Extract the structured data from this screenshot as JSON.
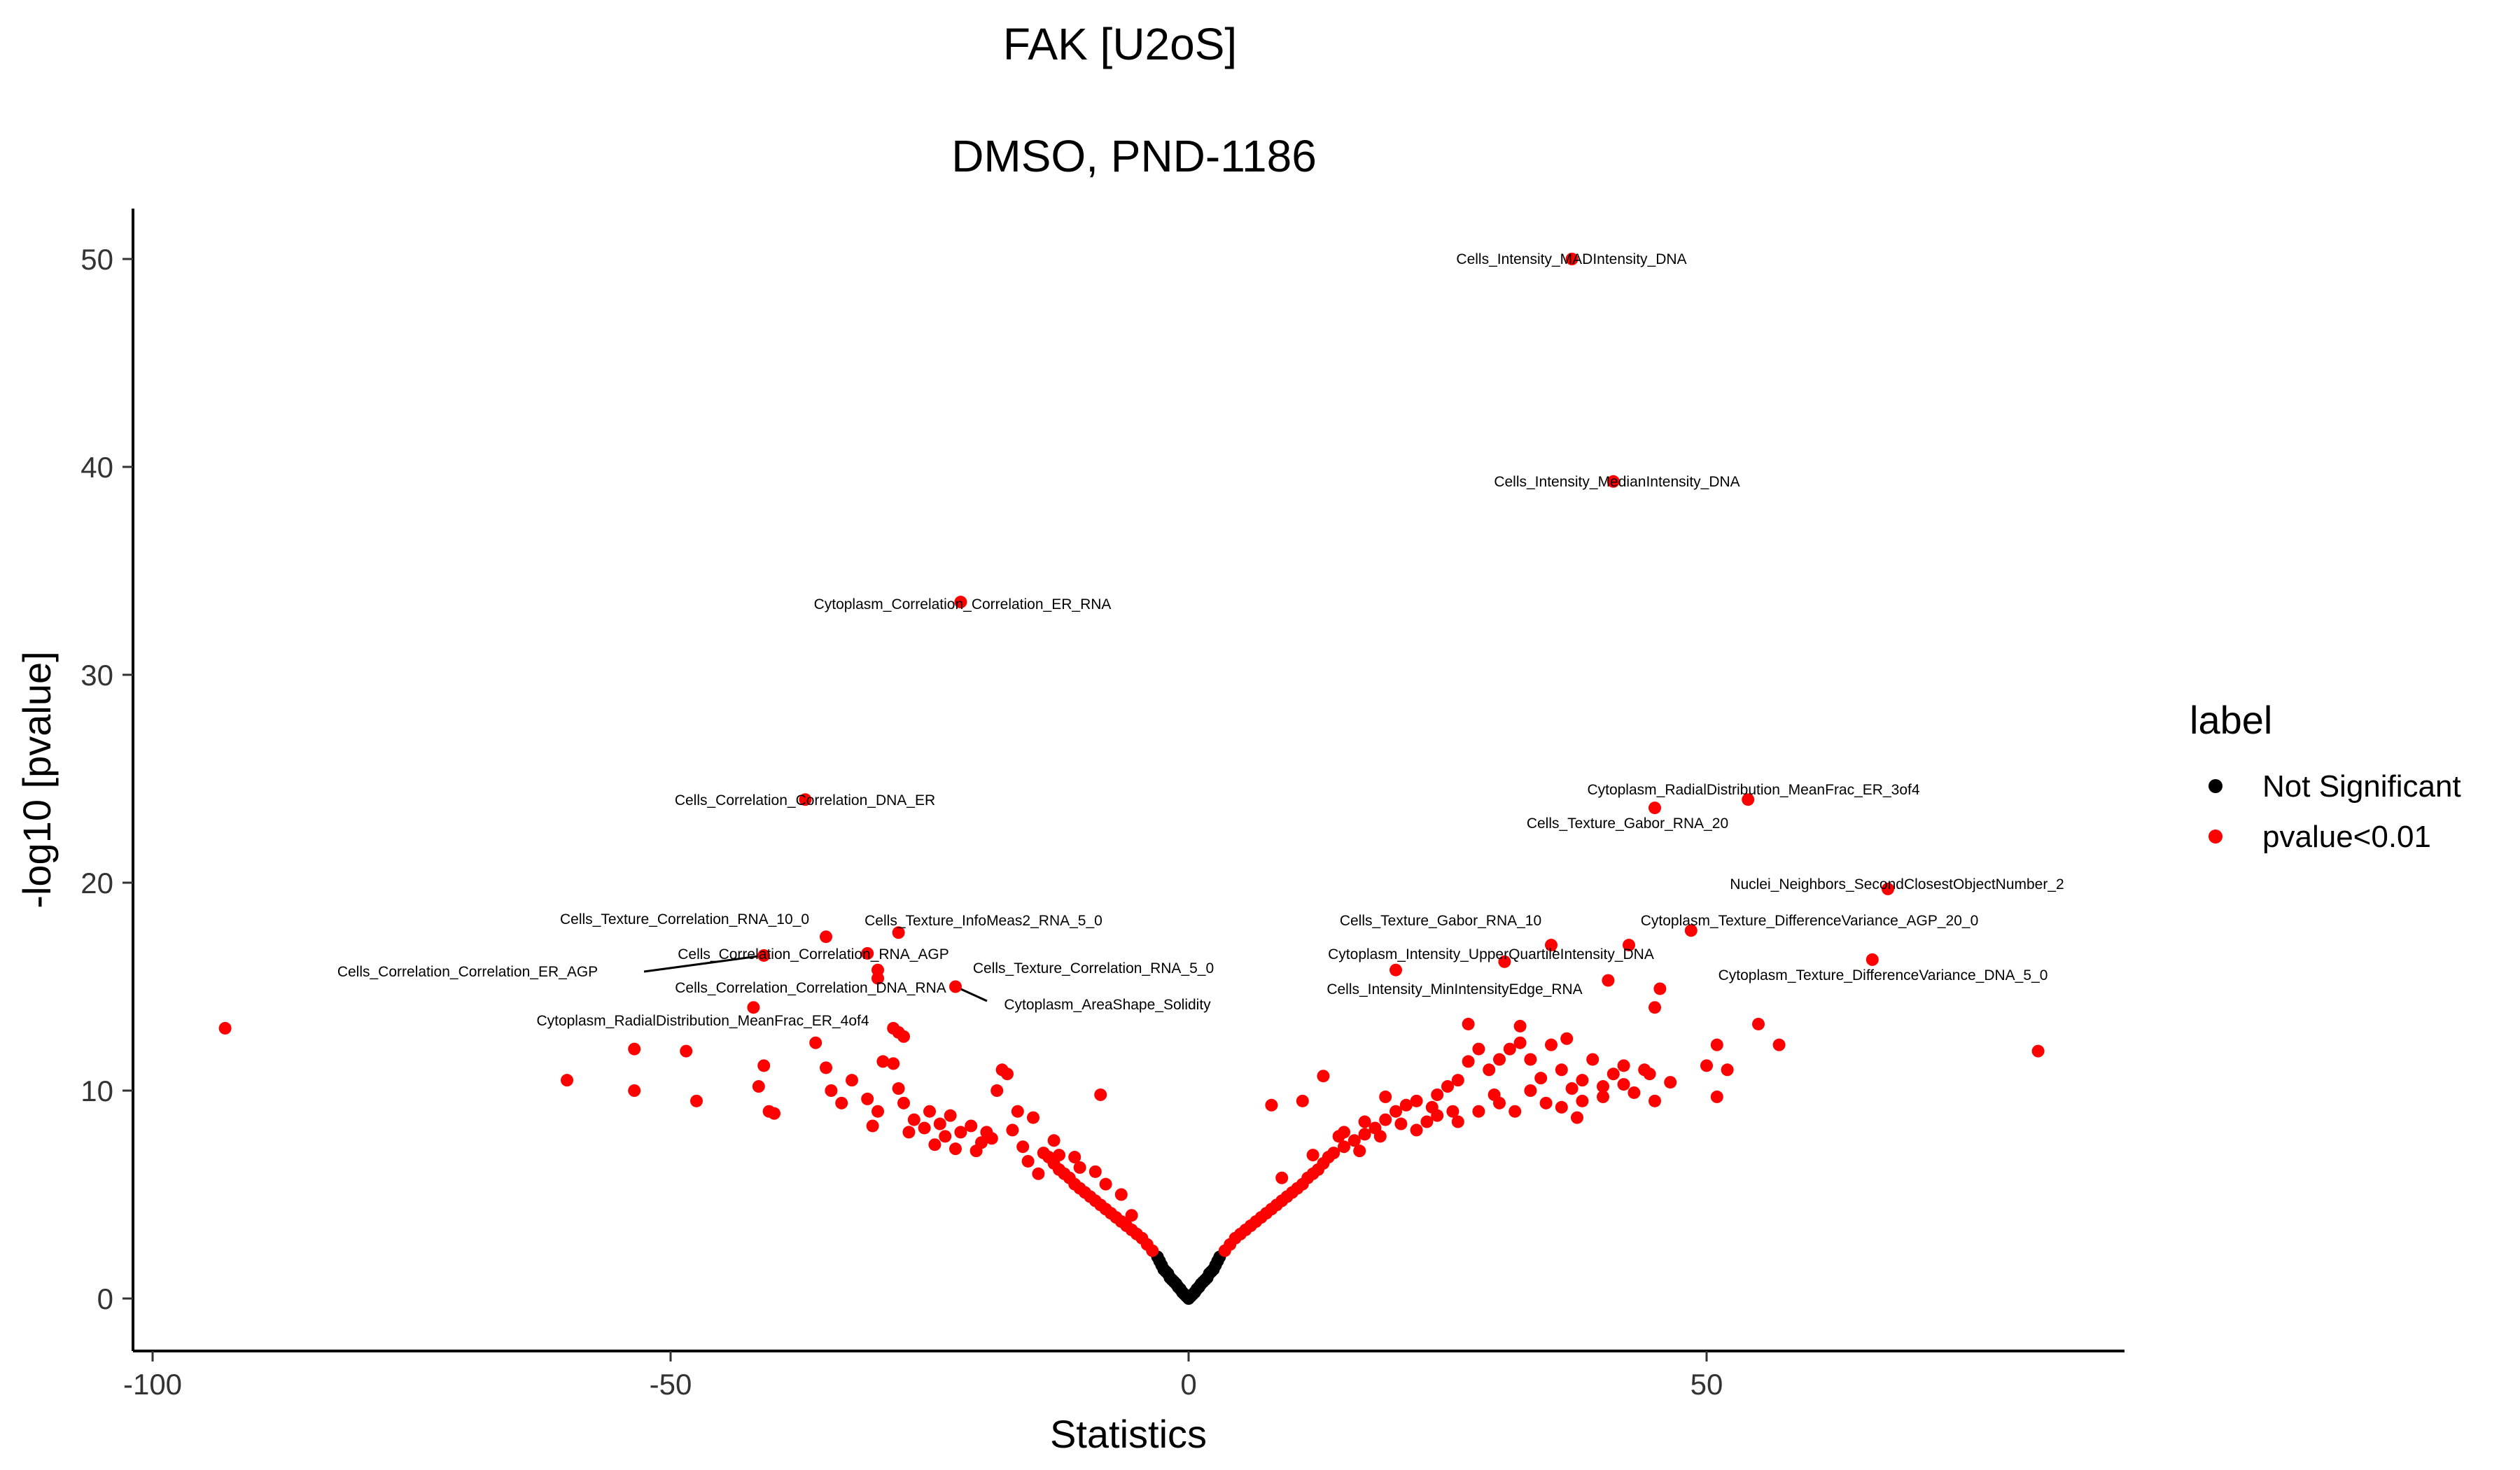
{
  "chart_data": {
    "type": "scatter",
    "title": "FAK [U2oS]",
    "subtitle": "DMSO, PND-1186",
    "xlabel": "Statistics",
    "ylabel": "-log10 [pvalue]",
    "xlim": [
      -102,
      90
    ],
    "ylim": [
      -2.5,
      52.5
    ],
    "x_ticks": [
      -100,
      -50,
      0,
      50
    ],
    "y_ticks": [
      0,
      10,
      20,
      30,
      40,
      50
    ],
    "x_tick_labels": [
      "-100",
      "-50",
      "0",
      "50"
    ],
    "y_tick_labels": [
      "0",
      "10",
      "20",
      "30",
      "40",
      "50"
    ],
    "grid": false,
    "legend": {
      "title": "label",
      "position": "right",
      "entries": [
        {
          "name": "Not Significant",
          "color": "#000000"
        },
        {
          "name": "pvalue<0.01",
          "color": "#ff0000"
        }
      ]
    },
    "series": [
      {
        "name": "Not Significant",
        "color": "#000000",
        "points": [
          [
            -3.0,
            2.0
          ],
          [
            -2.8,
            1.8
          ],
          [
            -2.6,
            1.6
          ],
          [
            -2.4,
            1.4
          ],
          [
            -2.2,
            1.3
          ],
          [
            -2.0,
            1.2
          ],
          [
            -1.8,
            1.0
          ],
          [
            -1.6,
            0.9
          ],
          [
            -1.4,
            0.8
          ],
          [
            -1.2,
            0.7
          ],
          [
            -1.0,
            0.55
          ],
          [
            -0.8,
            0.45
          ],
          [
            -0.6,
            0.3
          ],
          [
            -0.4,
            0.2
          ],
          [
            -0.2,
            0.1
          ],
          [
            0.0,
            0.0
          ],
          [
            0.2,
            0.1
          ],
          [
            0.4,
            0.2
          ],
          [
            0.6,
            0.3
          ],
          [
            0.8,
            0.45
          ],
          [
            1.0,
            0.55
          ],
          [
            1.2,
            0.7
          ],
          [
            1.4,
            0.8
          ],
          [
            1.6,
            0.9
          ],
          [
            1.8,
            1.0
          ],
          [
            2.0,
            1.2
          ],
          [
            2.2,
            1.3
          ],
          [
            2.4,
            1.4
          ],
          [
            2.6,
            1.6
          ],
          [
            2.8,
            1.8
          ],
          [
            3.0,
            2.0
          ]
        ]
      },
      {
        "name": "pvalue<0.01",
        "color": "#ff0000",
        "points": [
          [
            -93,
            13
          ],
          [
            -60,
            10.5
          ],
          [
            -53.5,
            12
          ],
          [
            -53.5,
            10
          ],
          [
            -48.5,
            11.9
          ],
          [
            -47.5,
            9.5
          ],
          [
            -41.5,
            10.2
          ],
          [
            -41,
            11.2
          ],
          [
            -40.5,
            9.0
          ],
          [
            -40,
            8.9
          ],
          [
            -36,
            12.3
          ],
          [
            -35,
            11.1
          ],
          [
            -34.5,
            10.0
          ],
          [
            -33.5,
            9.4
          ],
          [
            -32.5,
            10.5
          ],
          [
            -31,
            9.6
          ],
          [
            -30,
            9.0
          ],
          [
            -29.5,
            11.4
          ],
          [
            -28.5,
            11.3
          ],
          [
            -28,
            10.1
          ],
          [
            -27.5,
            9.4
          ],
          [
            -26.5,
            8.6
          ],
          [
            -25,
            9.0
          ],
          [
            -24,
            8.4
          ],
          [
            -23,
            8.8
          ],
          [
            -22,
            8.0
          ],
          [
            -21,
            8.3
          ],
          [
            -20,
            7.5
          ],
          [
            -19,
            7.7
          ],
          [
            -18.5,
            10.0
          ],
          [
            -18,
            11.0
          ],
          [
            -17.5,
            10.8
          ],
          [
            -16.5,
            9.0
          ],
          [
            -15,
            8.7
          ],
          [
            -14,
            7.0
          ],
          [
            -13.5,
            6.8
          ],
          [
            -13,
            6.5
          ],
          [
            -12.5,
            6.2
          ],
          [
            -12,
            6.0
          ],
          [
            -11.5,
            5.8
          ],
          [
            -11,
            5.5
          ],
          [
            -10.5,
            5.3
          ],
          [
            -10,
            5.1
          ],
          [
            -9.5,
            4.9
          ],
          [
            -9,
            4.7
          ],
          [
            -8.5,
            4.5
          ],
          [
            -8,
            4.3
          ],
          [
            -7.5,
            4.1
          ],
          [
            -7,
            3.9
          ],
          [
            -6.5,
            3.7
          ],
          [
            -6,
            3.5
          ],
          [
            -5.5,
            3.3
          ],
          [
            -5,
            3.1
          ],
          [
            -4.5,
            2.9
          ],
          [
            -4,
            2.6
          ],
          [
            -3.5,
            2.3
          ],
          [
            -6.5,
            5.0
          ],
          [
            -5.5,
            4.0
          ],
          [
            -9,
            6.1
          ],
          [
            -8,
            5.5
          ],
          [
            -13,
            7.6
          ],
          [
            -11,
            6.8
          ],
          [
            -8.5,
            9.8
          ],
          [
            -17,
            8.1
          ],
          [
            -19.5,
            8.0
          ],
          [
            -25.5,
            8.2
          ],
          [
            -30.5,
            8.3
          ],
          [
            -27,
            8.0
          ],
          [
            -22.5,
            7.2
          ],
          [
            -16,
            7.3
          ],
          [
            -15.5,
            6.6
          ],
          [
            -14.5,
            6.0
          ],
          [
            -12.5,
            6.9
          ],
          [
            -10.5,
            6.3
          ],
          [
            -20.5,
            7.1
          ],
          [
            -23.5,
            7.8
          ],
          [
            -24.5,
            7.4
          ],
          [
            3.5,
            2.3
          ],
          [
            4,
            2.6
          ],
          [
            4.5,
            2.9
          ],
          [
            5,
            3.1
          ],
          [
            5.5,
            3.3
          ],
          [
            6,
            3.5
          ],
          [
            6.5,
            3.7
          ],
          [
            7,
            3.9
          ],
          [
            7.5,
            4.1
          ],
          [
            8,
            4.3
          ],
          [
            8.5,
            4.5
          ],
          [
            9,
            4.7
          ],
          [
            9.5,
            4.9
          ],
          [
            10,
            5.1
          ],
          [
            10.5,
            5.3
          ],
          [
            11,
            5.5
          ],
          [
            11.5,
            5.8
          ],
          [
            12,
            6.0
          ],
          [
            12.5,
            6.2
          ],
          [
            13,
            6.5
          ],
          [
            13.5,
            6.8
          ],
          [
            14,
            7.0
          ],
          [
            15,
            7.3
          ],
          [
            16,
            7.6
          ],
          [
            17,
            7.9
          ],
          [
            18,
            8.2
          ],
          [
            19,
            8.6
          ],
          [
            20,
            9.0
          ],
          [
            21,
            9.3
          ],
          [
            22,
            9.5
          ],
          [
            23,
            8.5
          ],
          [
            24,
            9.8
          ],
          [
            25,
            10.2
          ],
          [
            26,
            10.5
          ],
          [
            27,
            11.4
          ],
          [
            28,
            12.0
          ],
          [
            29,
            11.0
          ],
          [
            30,
            11.5
          ],
          [
            31,
            12.0
          ],
          [
            32,
            12.3
          ],
          [
            33,
            11.5
          ],
          [
            34,
            10.6
          ],
          [
            35,
            12.2
          ],
          [
            36,
            11.0
          ],
          [
            37,
            10.1
          ],
          [
            38,
            9.5
          ],
          [
            39,
            11.5
          ],
          [
            40,
            10.2
          ],
          [
            41,
            10.8
          ],
          [
            42,
            11.2
          ],
          [
            43,
            9.9
          ],
          [
            44,
            11.0
          ],
          [
            45,
            9.5
          ],
          [
            50,
            11.2
          ],
          [
            51,
            12.2
          ],
          [
            51,
            9.7
          ],
          [
            52,
            11.0
          ],
          [
            55,
            13.2
          ],
          [
            57,
            12.2
          ],
          [
            82,
            11.9
          ],
          [
            8,
            9.3
          ],
          [
            11,
            9.5
          ],
          [
            13,
            10.7
          ],
          [
            15,
            8.0
          ],
          [
            17,
            8.5
          ],
          [
            19,
            9.7
          ],
          [
            22,
            8.1
          ],
          [
            24,
            8.8
          ],
          [
            26,
            8.5
          ],
          [
            28,
            9.0
          ],
          [
            30,
            9.4
          ],
          [
            33,
            10.0
          ],
          [
            36,
            9.2
          ],
          [
            38,
            10.5
          ],
          [
            40,
            9.7
          ],
          [
            42,
            10.3
          ],
          [
            27,
            13.2
          ],
          [
            32,
            13.1
          ],
          [
            36.5,
            12.5
          ],
          [
            9,
            5.8
          ],
          [
            12,
            6.9
          ],
          [
            14.5,
            7.8
          ],
          [
            16.5,
            7.1
          ],
          [
            18.5,
            7.8
          ],
          [
            20.5,
            8.4
          ],
          [
            23.5,
            9.2
          ],
          [
            25.5,
            9.0
          ],
          [
            29.5,
            9.8
          ],
          [
            31.5,
            9.0
          ],
          [
            34.5,
            9.4
          ],
          [
            37.5,
            8.7
          ],
          [
            44.5,
            10.8
          ],
          [
            46.5,
            10.4
          ],
          [
            37,
            50
          ],
          [
            41,
            39.3
          ],
          [
            -22,
            33.5
          ],
          [
            -37,
            24
          ],
          [
            54,
            24
          ],
          [
            45,
            23.6
          ],
          [
            67.5,
            19.7
          ],
          [
            -35,
            17.4
          ],
          [
            -28,
            17.6
          ],
          [
            35,
            17
          ],
          [
            48.5,
            17.7
          ],
          [
            42.5,
            17
          ],
          [
            -31,
            16.6
          ],
          [
            -41,
            16.5
          ],
          [
            -30,
            15.8
          ],
          [
            -30,
            15.4
          ],
          [
            -22.5,
            15
          ],
          [
            30.5,
            16.2
          ],
          [
            20,
            15.8
          ],
          [
            40.5,
            15.3
          ],
          [
            66,
            16.3
          ],
          [
            45.5,
            14.9
          ],
          [
            -42,
            14
          ],
          [
            45,
            14
          ],
          [
            -28.5,
            13
          ],
          [
            -28,
            12.8
          ],
          [
            -27.5,
            12.6
          ]
        ]
      }
    ],
    "annotations": [
      {
        "text": "Cells_Intensity_MADIntensity_DNA",
        "x": 37,
        "y": 50
      },
      {
        "text": "Cells_Intensity_MedianIntensity_DNA",
        "x": 41,
        "y": 39.3
      },
      {
        "text": "Cytoplasm_Correlation_Correlation_ER_RNA",
        "x": -22,
        "y": 33.5
      },
      {
        "text": "Cells_Correlation_Correlation_DNA_ER",
        "x": -37,
        "y": 24
      },
      {
        "text": "Cytoplasm_RadialDistribution_MeanFrac_ER_3of4",
        "x": 54,
        "y": 24
      },
      {
        "text": "Cells_Texture_Gabor_RNA_20",
        "x": 45,
        "y": 23.6
      },
      {
        "text": "Nuclei_Neighbors_SecondClosestObjectNumber_2",
        "x": 67.5,
        "y": 19.7
      },
      {
        "text": "Cells_Texture_Correlation_RNA_10_0",
        "x": -35,
        "y": 17.4
      },
      {
        "text": "Cells_Texture_InfoMeas2_RNA_5_0",
        "x": -28,
        "y": 17.6
      },
      {
        "text": "Cells_Texture_Gabor_RNA_10",
        "x": 35,
        "y": 17
      },
      {
        "text": "Cytoplasm_Texture_DifferenceVariance_AGP_20_0",
        "x": 48.5,
        "y": 17.7
      },
      {
        "text": "Cells_Correlation_Correlation_RNA_AGP",
        "x": -31,
        "y": 16.6
      },
      {
        "text": "Cytoplasm_Intensity_UpperQuartileIntensity_DNA",
        "x": 30.5,
        "y": 16.2
      },
      {
        "text": "Cells_Correlation_Correlation_ER_AGP",
        "x": -41,
        "y": 16.5
      },
      {
        "text": "Cells_Texture_Correlation_RNA_5_0",
        "x": -30,
        "y": 15.8
      },
      {
        "text": "Cytoplasm_Texture_DifferenceVariance_DNA_5_0",
        "x": 66,
        "y": 16.3
      },
      {
        "text": "Cells_Correlation_Correlation_DNA_RNA",
        "x": -22.5,
        "y": 15
      },
      {
        "text": "Cells_Intensity_MinIntensityEdge_RNA",
        "x": 20,
        "y": 15.8
      },
      {
        "text": "Cytoplasm_AreaShape_Solidity",
        "x": -22.5,
        "y": 15
      },
      {
        "text": "Cytoplasm_RadialDistribution_MeanFrac_ER_4of4",
        "x": -28.5,
        "y": 13
      }
    ]
  }
}
